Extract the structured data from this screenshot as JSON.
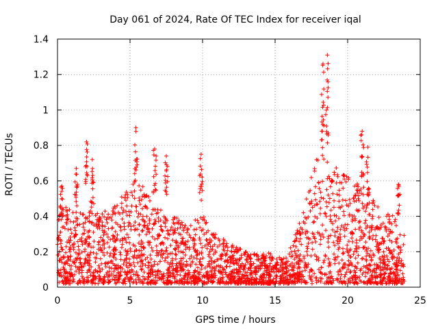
{
  "chart_data": {
    "type": "scatter",
    "title": "Day 061 of 2024, Rate Of TEC Index for receiver iqal",
    "xlabel": "GPS time / hours",
    "ylabel": "ROTI / TECUs",
    "xlim": [
      0,
      25
    ],
    "ylim": [
      0,
      1.4
    ],
    "xticks": [
      0,
      5,
      10,
      15,
      20,
      25
    ],
    "xtick_labels": [
      "0",
      "5",
      "10",
      "15",
      "20",
      "25"
    ],
    "yticks": [
      0,
      0.2,
      0.4,
      0.6,
      0.8,
      1.0,
      1.2,
      1.4
    ],
    "ytick_labels": [
      "0",
      "0.2",
      "0.4",
      "0.6",
      "0.8",
      "1",
      "1.2",
      "1.4"
    ],
    "grid": true,
    "marker": "+",
    "color": "#ff0000",
    "series": [
      {
        "name": "ROTI",
        "envelope_x": [
          0,
          0.5,
          1,
          1.5,
          2,
          2.5,
          3,
          3.5,
          4,
          4.5,
          5,
          5.5,
          6,
          6.5,
          7,
          7.5,
          8,
          8.5,
          9,
          9.5,
          10,
          10.5,
          11,
          11.5,
          12,
          12.5,
          13,
          13.5,
          14,
          14.5,
          15,
          15.5,
          16,
          16.5,
          17,
          17.5,
          18,
          18.5,
          19,
          19.5,
          20,
          20.5,
          21,
          21.5,
          22,
          22.5,
          23,
          23.5,
          23.9
        ],
        "envelope_typical_max": [
          0.5,
          0.45,
          0.4,
          0.42,
          0.4,
          0.45,
          0.4,
          0.42,
          0.45,
          0.5,
          0.55,
          0.6,
          0.55,
          0.45,
          0.42,
          0.4,
          0.38,
          0.36,
          0.34,
          0.36,
          0.4,
          0.32,
          0.28,
          0.26,
          0.22,
          0.2,
          0.18,
          0.17,
          0.17,
          0.18,
          0.15,
          0.15,
          0.2,
          0.3,
          0.45,
          0.6,
          0.8,
          1.0,
          0.7,
          0.6,
          0.65,
          0.55,
          0.6,
          0.5,
          0.45,
          0.4,
          0.4,
          0.35,
          0.3
        ],
        "peaks": [
          {
            "x": 0.3,
            "y": 0.57
          },
          {
            "x": 1.3,
            "y": 0.67
          },
          {
            "x": 2.0,
            "y": 0.82
          },
          {
            "x": 2.4,
            "y": 0.72
          },
          {
            "x": 5.4,
            "y": 0.9
          },
          {
            "x": 6.7,
            "y": 0.78
          },
          {
            "x": 7.5,
            "y": 0.74
          },
          {
            "x": 9.9,
            "y": 0.75
          },
          {
            "x": 18.3,
            "y": 1.26
          },
          {
            "x": 18.6,
            "y": 1.31
          },
          {
            "x": 21.0,
            "y": 0.88
          },
          {
            "x": 21.4,
            "y": 0.79
          },
          {
            "x": 23.5,
            "y": 0.58
          }
        ]
      }
    ]
  }
}
